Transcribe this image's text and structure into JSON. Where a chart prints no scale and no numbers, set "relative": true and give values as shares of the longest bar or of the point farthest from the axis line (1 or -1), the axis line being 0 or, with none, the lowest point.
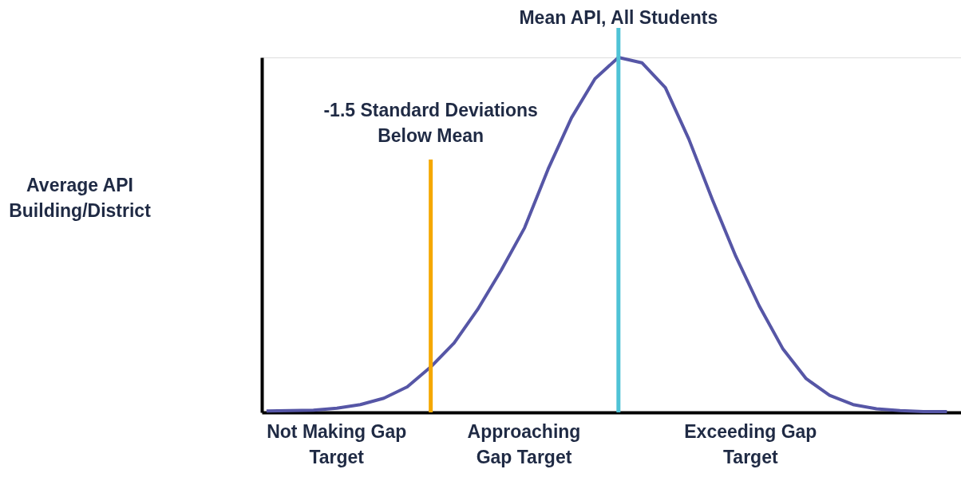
{
  "chart_data": {
    "type": "line",
    "relative": true,
    "categories": [
      null,
      null,
      null,
      null,
      null,
      null,
      null,
      null,
      null,
      null,
      null,
      null,
      null,
      null,
      null,
      null,
      null,
      null,
      null,
      null,
      null,
      null,
      null,
      null,
      null,
      null,
      null,
      null,
      null,
      null
    ],
    "series": [
      {
        "color": "#5656a6",
        "values": [
          0.004,
          0.005,
          0.006,
          0.012,
          0.022,
          0.04,
          0.072,
          0.128,
          0.196,
          0.29,
          0.4,
          0.52,
          0.685,
          0.83,
          0.94,
          1,
          0.985,
          0.915,
          0.77,
          0.6,
          0.44,
          0.3,
          0.18,
          0.095,
          0.048,
          0.022,
          0.01,
          0.005,
          0.002,
          0.002
        ]
      }
    ],
    "marker": "none",
    "line_style": "solid",
    "annotations": [
      "Mean API, All Students",
      "-1.5 Standard Deviations Below Mean",
      "Average API Building/District",
      "Not Making Gap Target",
      "Approaching Gap Target",
      "Exceeding Gap Target"
    ]
  }
}
